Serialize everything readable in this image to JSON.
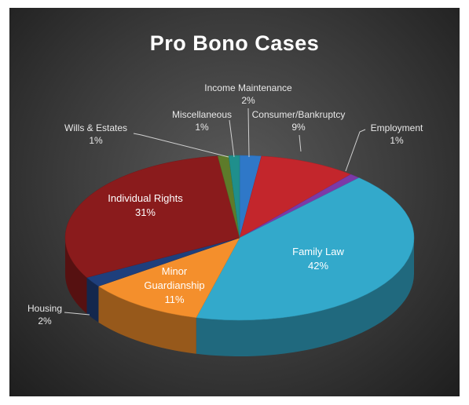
{
  "chart_data": {
    "type": "pie3d",
    "title": "Pro Bono Cases",
    "categories": [
      "Income Maintenance",
      "Consumer/Bankruptcy",
      "Employment",
      "Family Law",
      "Minor Guardianship",
      "Housing",
      "Individual Rights",
      "Wills & Estates",
      "Miscellaneous"
    ],
    "values": [
      2,
      9,
      1,
      42,
      11,
      2,
      31,
      1,
      1
    ],
    "value_labels": [
      "2%",
      "9%",
      "1%",
      "42%",
      "11%",
      "2%",
      "31%",
      "1%",
      "1%"
    ],
    "colors": [
      "#2f78c8",
      "#c3262c",
      "#7b3aa8",
      "#33a9cb",
      "#f48f2c",
      "#1e3f7c",
      "#8a1b1c",
      "#5d7b2a",
      "#1f8f8c"
    ]
  }
}
